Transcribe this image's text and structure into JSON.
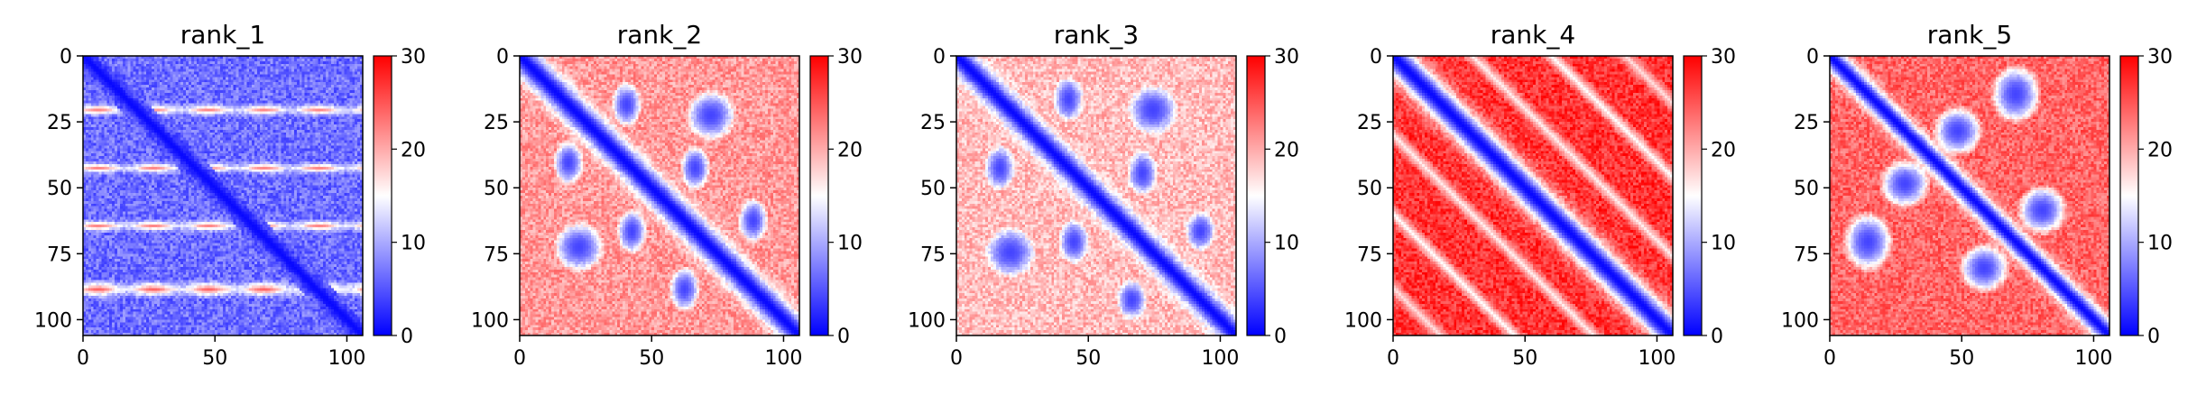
{
  "chart_data": [
    {
      "type": "heatmap",
      "title": "rank_1",
      "n": 106,
      "xlim": [
        0,
        106
      ],
      "ylim": [
        106,
        0
      ],
      "xticks": [
        0,
        50,
        100
      ],
      "yticks": [
        0,
        25,
        50,
        75,
        100
      ],
      "colorbar": {
        "range": [
          0,
          30
        ],
        "ticks": [
          0,
          10,
          20,
          30
        ],
        "cmap": [
          "#0000ff",
          "#ffffff",
          "#ff0000"
        ]
      },
      "pattern": {
        "diag_width": 3.0,
        "background": 6.5,
        "bands": [
          [
            20,
            2.5,
            22
          ],
          [
            42,
            2.5,
            22
          ],
          [
            64,
            2.5,
            22
          ],
          [
            88,
            3.5,
            24
          ]
        ],
        "band_axis": "row",
        "blobs": []
      }
    },
    {
      "type": "heatmap",
      "title": "rank_2",
      "n": 106,
      "xlim": [
        0,
        106
      ],
      "ylim": [
        106,
        0
      ],
      "xticks": [
        0,
        50,
        100
      ],
      "yticks": [
        0,
        25,
        50,
        75,
        100
      ],
      "colorbar": {
        "range": [
          0,
          30
        ],
        "ticks": [
          0,
          10,
          20,
          30
        ],
        "cmap": [
          "#0000ff",
          "#ffffff",
          "#ff0000"
        ]
      },
      "pattern": {
        "diag_width": 5.0,
        "background": 21,
        "bands": [],
        "blobs": [
          [
            18,
            40,
            9,
            6
          ],
          [
            40,
            18,
            9,
            6
          ],
          [
            42,
            66,
            9,
            6
          ],
          [
            66,
            42,
            9,
            6
          ],
          [
            62,
            88,
            9,
            6
          ],
          [
            88,
            62,
            9,
            6
          ],
          [
            22,
            72,
            10,
            10
          ],
          [
            72,
            22,
            10,
            10
          ]
        ]
      }
    },
    {
      "type": "heatmap",
      "title": "rank_3",
      "n": 106,
      "xlim": [
        0,
        106
      ],
      "ylim": [
        106,
        0
      ],
      "xticks": [
        0,
        50,
        100
      ],
      "yticks": [
        0,
        25,
        50,
        75,
        100
      ],
      "colorbar": {
        "range": [
          0,
          30
        ],
        "ticks": [
          0,
          10,
          20,
          30
        ],
        "cmap": [
          "#0000ff",
          "#ffffff",
          "#ff0000"
        ]
      },
      "pattern": {
        "diag_width": 4.5,
        "background": 19,
        "bands": [],
        "blobs": [
          [
            16,
            42,
            9,
            6
          ],
          [
            42,
            16,
            9,
            6
          ],
          [
            44,
            70,
            9,
            6
          ],
          [
            70,
            44,
            9,
            6
          ],
          [
            66,
            92,
            8,
            6
          ],
          [
            92,
            66,
            8,
            6
          ],
          [
            20,
            74,
            10,
            10
          ],
          [
            74,
            20,
            10,
            10
          ]
        ]
      }
    },
    {
      "type": "heatmap",
      "title": "rank_4",
      "n": 106,
      "xlim": [
        0,
        106
      ],
      "ylim": [
        106,
        0
      ],
      "xticks": [
        0,
        50,
        100
      ],
      "yticks": [
        0,
        25,
        50,
        75,
        100
      ],
      "colorbar": {
        "range": [
          0,
          30
        ],
        "ticks": [
          0,
          10,
          20,
          30
        ],
        "cmap": [
          "#0000ff",
          "#ffffff",
          "#ff0000"
        ]
      },
      "pattern": {
        "diag_width": 5.5,
        "background": 27,
        "bands": [],
        "blobs": [],
        "stripes": [
          [
            30,
            5,
            16
          ],
          [
            60,
            5,
            15
          ],
          [
            88,
            5,
            17
          ]
        ]
      }
    },
    {
      "type": "heatmap",
      "title": "rank_5",
      "n": 106,
      "xlim": [
        0,
        106
      ],
      "ylim": [
        106,
        0
      ],
      "xticks": [
        0,
        50,
        100
      ],
      "yticks": [
        0,
        25,
        50,
        75,
        100
      ],
      "colorbar": {
        "range": [
          0,
          30
        ],
        "ticks": [
          0,
          10,
          20,
          30
        ],
        "cmap": [
          "#0000ff",
          "#ffffff",
          "#ff0000"
        ]
      },
      "pattern": {
        "diag_width": 4.0,
        "background": 24,
        "bands": [],
        "blobs": [
          [
            28,
            48,
            10,
            10
          ],
          [
            48,
            28,
            10,
            10
          ],
          [
            58,
            80,
            10,
            10
          ],
          [
            80,
            58,
            10,
            10
          ],
          [
            14,
            70,
            12,
            10
          ],
          [
            70,
            14,
            12,
            10
          ]
        ]
      }
    }
  ]
}
